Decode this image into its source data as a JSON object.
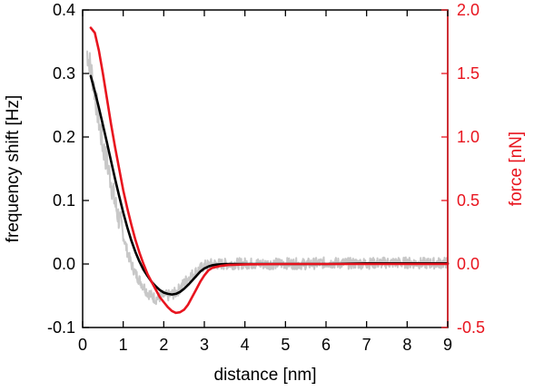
{
  "chart_data": {
    "type": "line",
    "title": "",
    "xlabel": "distance [nm]",
    "ylabel_left": "frequency shift [Hz]",
    "ylabel_right": "force [nN]",
    "xlim": [
      0,
      9
    ],
    "ylim_left": [
      -0.1,
      0.4
    ],
    "ylim_right": [
      -0.5,
      2.0
    ],
    "grid": false,
    "legend": "none",
    "x_ticks": [
      "0",
      "1",
      "2",
      "3",
      "4",
      "5",
      "6",
      "7",
      "8",
      "9"
    ],
    "y_left_ticks": [
      "-0.1",
      "0.0",
      "0.1",
      "0.2",
      "0.3",
      "0.4"
    ],
    "y_right_ticks": [
      "-0.5",
      "0.0",
      "0.5",
      "1.0",
      "1.5",
      "2.0"
    ],
    "colors": {
      "raw": "#c8c8c8",
      "fit": "#000000",
      "force": "#e8141e",
      "right_axis": "#e8141e"
    },
    "series": [
      {
        "axis": "left",
        "color": "#c8c8c8",
        "style": "noisy raw data",
        "x": [
          0.1,
          0.2,
          0.3,
          0.4,
          0.5,
          0.6,
          0.7,
          0.8,
          0.9,
          1.0,
          1.1,
          1.2,
          1.3,
          1.4,
          1.5,
          1.6,
          1.7,
          1.8,
          1.9,
          2.0,
          2.1,
          2.2,
          2.3,
          2.4,
          2.5,
          2.6,
          2.8,
          3.0,
          3.2,
          3.5,
          4.0,
          4.5,
          5.0,
          5.5,
          6.0,
          6.5,
          7.0,
          7.5,
          8.0,
          8.5,
          9.0
        ],
        "y": [
          0.335,
          0.31,
          0.27,
          0.225,
          0.185,
          0.16,
          0.13,
          0.095,
          0.07,
          0.045,
          0.02,
          0.0,
          -0.015,
          -0.025,
          -0.035,
          -0.045,
          -0.05,
          -0.055,
          -0.052,
          -0.05,
          -0.05,
          -0.048,
          -0.045,
          -0.038,
          -0.03,
          -0.022,
          -0.012,
          -0.003,
          0.0,
          0.0,
          0.001,
          0.0,
          0.001,
          0.0,
          0.002,
          0.001,
          0.001,
          0.002,
          0.002,
          0.001,
          0.002
        ]
      },
      {
        "axis": "left",
        "color": "#000000",
        "style": "fit",
        "x": [
          0.2,
          0.3,
          0.4,
          0.5,
          0.6,
          0.7,
          0.8,
          0.9,
          1.0,
          1.1,
          1.2,
          1.3,
          1.4,
          1.5,
          1.6,
          1.7,
          1.8,
          1.9,
          2.0,
          2.1,
          2.2,
          2.3,
          2.4,
          2.5,
          2.6,
          2.7,
          2.8,
          2.9,
          3.0,
          3.1,
          3.2,
          3.3,
          3.5,
          4.0,
          5.0,
          6.0,
          7.0,
          8.0,
          9.0
        ],
        "y": [
          0.296,
          0.272,
          0.246,
          0.219,
          0.191,
          0.162,
          0.134,
          0.107,
          0.081,
          0.058,
          0.037,
          0.019,
          0.004,
          -0.009,
          -0.019,
          -0.028,
          -0.035,
          -0.041,
          -0.045,
          -0.047,
          -0.048,
          -0.047,
          -0.044,
          -0.039,
          -0.033,
          -0.026,
          -0.019,
          -0.012,
          -0.007,
          -0.004,
          -0.002,
          -0.001,
          0.0,
          0.0,
          0.0,
          0.0,
          0.001,
          0.001,
          0.001
        ]
      },
      {
        "axis": "right",
        "color": "#e8141e",
        "style": "force",
        "x": [
          0.2,
          0.3,
          0.4,
          0.5,
          0.6,
          0.7,
          0.8,
          0.9,
          1.0,
          1.1,
          1.2,
          1.3,
          1.4,
          1.5,
          1.6,
          1.7,
          1.8,
          1.9,
          2.0,
          2.1,
          2.2,
          2.3,
          2.4,
          2.5,
          2.6,
          2.7,
          2.8,
          2.9,
          3.0,
          3.1,
          3.2,
          3.4,
          3.6,
          4.0,
          5.0,
          6.0,
          7.0,
          8.0,
          9.0
        ],
        "y": [
          1.86,
          1.82,
          1.68,
          1.5,
          1.3,
          1.1,
          0.92,
          0.75,
          0.58,
          0.44,
          0.31,
          0.19,
          0.09,
          0.0,
          -0.08,
          -0.14,
          -0.2,
          -0.26,
          -0.3,
          -0.34,
          -0.37,
          -0.385,
          -0.38,
          -0.36,
          -0.32,
          -0.26,
          -0.2,
          -0.14,
          -0.09,
          -0.05,
          -0.03,
          -0.015,
          -0.008,
          -0.003,
          0.0,
          0.0,
          0.0,
          0.0,
          0.0
        ]
      }
    ]
  }
}
